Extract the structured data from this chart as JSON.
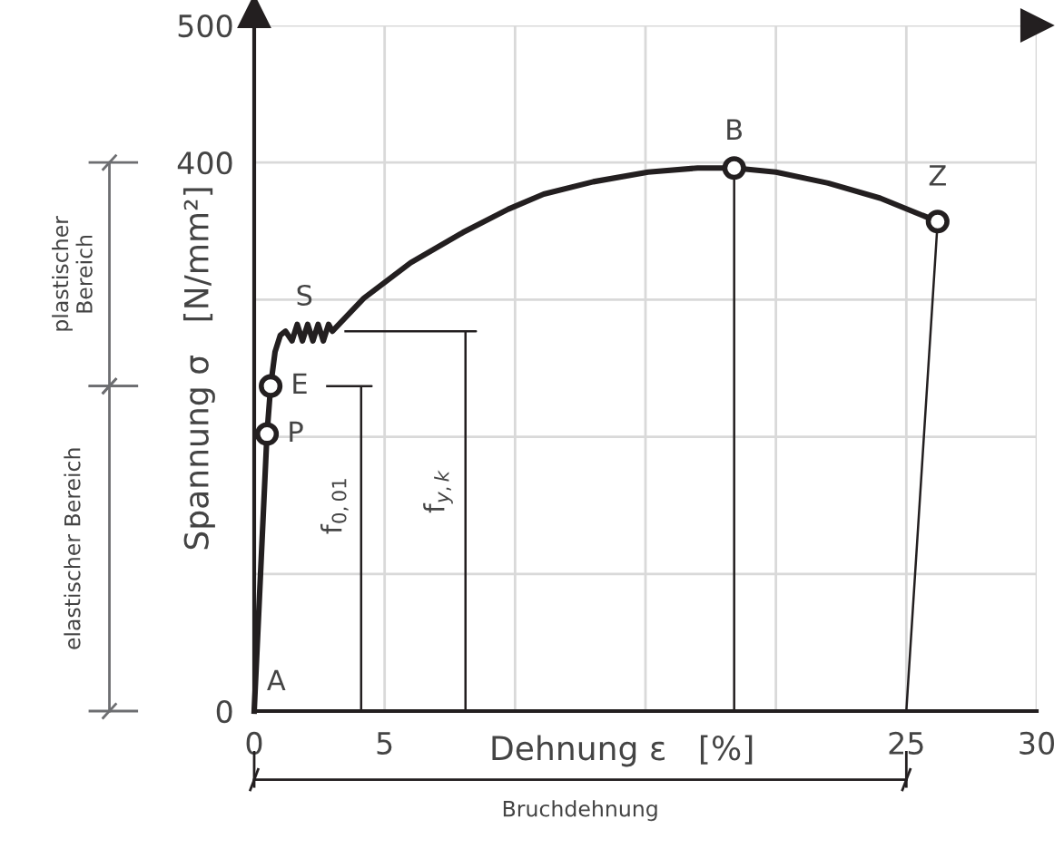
{
  "chart_data": {
    "type": "line",
    "xlabel": "Dehnung ε   [%]",
    "ylabel": "Spannung σ   [N/mm²]",
    "xlim": [
      0,
      30
    ],
    "ylim": [
      0,
      500
    ],
    "xticks": [
      0,
      5,
      {
        "value": 10,
        "label": null
      },
      {
        "value": 15,
        "label": null
      },
      {
        "value": 20,
        "label": null
      },
      25,
      30
    ],
    "yticks": [
      0,
      {
        "value": 100,
        "label": null
      },
      {
        "value": 200,
        "label": null
      },
      {
        "value": 300,
        "label": null
      },
      400,
      500
    ],
    "grid": true,
    "marker": "none",
    "line_style": "solid",
    "series": [
      {
        "color": "#231f20",
        "x": [
          0,
          0.49,
          0.63,
          0.8,
          1.0,
          1.2,
          1.45,
          1.65,
          1.85,
          2.05,
          2.25,
          2.45,
          2.65,
          2.85,
          3.0,
          4.2,
          6,
          8,
          9.74,
          11.1,
          13,
          15.1,
          17,
          18.4,
          20,
          22,
          24,
          26.2
        ],
        "values": [
          0,
          202,
          237,
          262,
          274,
          277,
          270,
          282,
          270,
          282,
          270,
          282,
          270,
          282,
          277,
          301,
          327,
          349,
          366,
          377,
          386,
          393,
          396,
          396,
          393,
          385,
          374,
          357
        ]
      },
      {
        "color": "#231f20",
        "x": [
          26.2,
          25
        ],
        "values": [
          357,
          0
        ]
      },
      {
        "type": "line",
        "color": "#231f20",
        "x": [
          18.4,
          18.4
        ],
        "values": [
          0,
          396
        ]
      },
      {
        "type": "line",
        "color": "#231f20",
        "x": [
          2.8,
          4.5,
          4.1,
          4.1
        ],
        "values": [
          237,
          237,
          237,
          0
        ]
      },
      {
        "type": "line",
        "color": "#231f20",
        "x": [
          3.5,
          8.5,
          8.1,
          8.1
        ],
        "values": [
          277,
          277,
          277,
          0
        ]
      },
      {
        "type": "scatter",
        "color": "#231f20",
        "marker": "circle",
        "x": [
          0.49,
          0.63,
          18.4,
          26.2
        ],
        "values": [
          202,
          237,
          396,
          357
        ]
      }
    ],
    "annotations": [
      {
        "text": "A",
        "x": 0,
        "y": 0
      },
      {
        "text": "P",
        "x": 0.49,
        "y": 202
      },
      {
        "text": "E",
        "x": 0.63,
        "y": 237
      },
      {
        "text": "S",
        "x": 1.2,
        "y": 277
      },
      {
        "text": "B",
        "x": 18.4,
        "y": 396
      },
      {
        "text": "Z",
        "x": 26.2,
        "y": 357
      },
      {
        "text": "f$_{0,01}$",
        "x": 4.1,
        "y": 150
      },
      {
        "text": "f$_{y,k}$",
        "x": 8.1,
        "y": 160
      },
      "elastischer Bereich",
      "plastischer\nBereich",
      "Bruchdehnung"
    ]
  }
}
